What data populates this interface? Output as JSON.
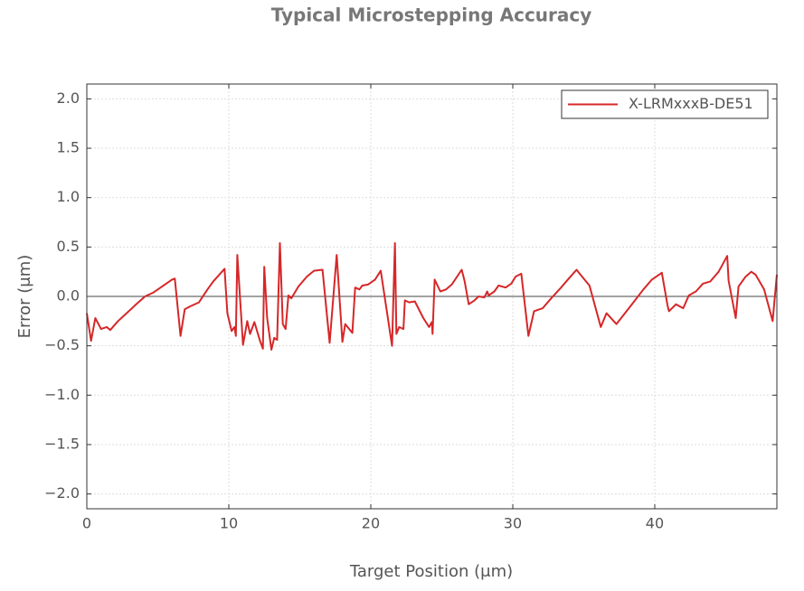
{
  "chart_data": {
    "type": "line",
    "title": "Typical Microstepping Accuracy",
    "x_label": "Target Position (μm)",
    "y_label": "Error (μm)",
    "xlim": [
      0,
      48.6
    ],
    "ylim": [
      -2.15,
      2.15
    ],
    "xticks": [
      0,
      10,
      20,
      30,
      40
    ],
    "yticks": [
      {
        "value": -2.0,
        "label": "−2.0"
      },
      {
        "value": -1.5,
        "label": "−1.5"
      },
      {
        "value": -1.0,
        "label": "−1.0"
      },
      {
        "value": -0.5,
        "label": "−0.5"
      },
      {
        "value": 0.0,
        "label": "0.0"
      },
      {
        "value": 0.5,
        "label": "0.5"
      },
      {
        "value": 1.0,
        "label": "1.0"
      },
      {
        "value": 1.5,
        "label": "1.5"
      },
      {
        "value": 2.0,
        "label": "2.0"
      }
    ],
    "grid": true,
    "reference_line": 0,
    "legend": "upper right",
    "x": [
      0,
      0.3,
      0.6,
      1.0,
      1.4,
      1.65,
      2.2,
      2.8,
      3.4,
      4.1,
      4.7,
      5.3,
      6.0,
      6.2,
      6.6,
      6.9,
      7.3,
      7.9,
      8.5,
      8.9,
      9.7,
      9.9,
      10.2,
      10.4,
      10.5,
      10.6,
      11.0,
      11.3,
      11.5,
      11.8,
      12.2,
      12.4,
      12.5,
      12.7,
      13.0,
      13.2,
      13.4,
      13.6,
      13.8,
      14.0,
      14.2,
      14.4,
      14.9,
      15.5,
      16.0,
      16.6,
      17.1,
      17.6,
      18.0,
      18.2,
      18.7,
      18.9,
      19.2,
      19.4,
      19.8,
      20.3,
      20.7,
      21.5,
      21.7,
      21.8,
      22.0,
      22.3,
      22.4,
      22.7,
      23.1,
      23.7,
      24.1,
      24.3,
      24.35,
      24.5,
      24.9,
      25.3,
      25.7,
      26.4,
      26.6,
      26.9,
      27.3,
      27.6,
      28.0,
      28.2,
      28.3,
      28.7,
      29.0,
      29.5,
      29.9,
      30.2,
      30.6,
      31.1,
      31.5,
      32.1,
      32.7,
      33.4,
      34.0,
      34.5,
      34.6,
      35.4,
      36.2,
      36.6,
      37.3,
      37.9,
      38.5,
      39.2,
      39.8,
      40.4,
      40.5,
      40.9,
      41.0,
      41.5,
      42.0,
      42.4,
      42.9,
      43.4,
      43.9,
      44.5,
      45.1,
      45.2,
      45.7,
      45.9,
      46.4,
      46.8,
      47.1,
      47.7,
      48.3,
      48.6
    ],
    "series": [
      {
        "name": "X-LRMxxxB-DE51",
        "color": "#d62728",
        "values": [
          -0.17,
          -0.45,
          -0.22,
          -0.33,
          -0.31,
          -0.34,
          -0.25,
          -0.17,
          -0.09,
          0.0,
          0.04,
          0.1,
          0.17,
          0.18,
          -0.4,
          -0.13,
          -0.1,
          -0.06,
          0.07,
          0.15,
          0.28,
          -0.17,
          -0.35,
          -0.31,
          -0.4,
          0.42,
          -0.49,
          -0.25,
          -0.38,
          -0.26,
          -0.45,
          -0.53,
          0.3,
          -0.22,
          -0.54,
          -0.42,
          -0.44,
          0.54,
          -0.28,
          -0.33,
          0.01,
          -0.02,
          0.1,
          0.2,
          0.26,
          0.27,
          -0.47,
          0.42,
          -0.46,
          -0.28,
          -0.37,
          0.09,
          0.07,
          0.11,
          0.12,
          0.17,
          0.26,
          -0.5,
          0.54,
          -0.38,
          -0.31,
          -0.33,
          -0.04,
          -0.06,
          -0.05,
          -0.22,
          -0.31,
          -0.26,
          -0.38,
          0.17,
          0.05,
          0.07,
          0.12,
          0.27,
          0.16,
          -0.08,
          -0.04,
          0.0,
          -0.01,
          0.05,
          0.01,
          0.05,
          0.11,
          0.09,
          0.13,
          0.2,
          0.23,
          -0.4,
          -0.15,
          -0.12,
          -0.02,
          0.09,
          0.19,
          0.27,
          0.25,
          0.11,
          -0.31,
          -0.17,
          -0.28,
          -0.17,
          -0.06,
          0.07,
          0.17,
          0.23,
          0.24,
          -0.09,
          -0.15,
          -0.08,
          -0.12,
          0.01,
          0.05,
          0.13,
          0.15,
          0.25,
          0.41,
          0.16,
          -0.22,
          0.1,
          0.2,
          0.25,
          0.22,
          0.07,
          -0.25,
          0.22
        ]
      }
    ]
  }
}
